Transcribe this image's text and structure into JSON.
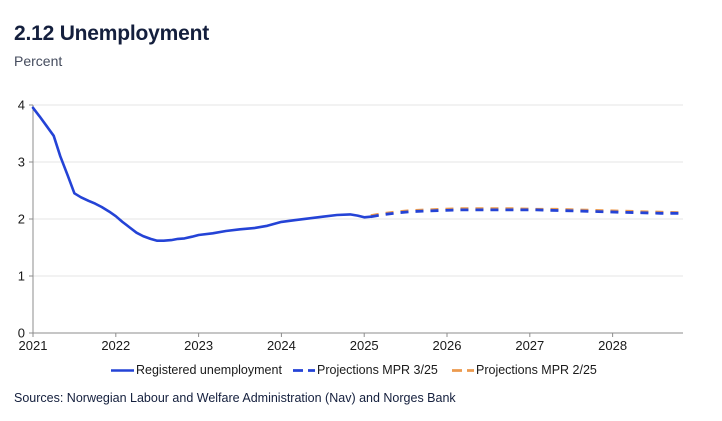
{
  "header": {
    "title": "2.12 Unemployment",
    "subtitle": "Percent"
  },
  "footer": {
    "sources": "Sources: Norwegian Labour and Welfare Administration (Nav) and Norges Bank"
  },
  "colors": {
    "blue": "#2443d6",
    "orange": "#ec9a4e",
    "title_navy": "#141f3d",
    "subtitle_gray": "#454c5e",
    "axis_line": "#8c8c8c",
    "gridline": "#e4e4e4",
    "tick_label": "#1a1a1a"
  },
  "chart_data": {
    "type": "line",
    "title": "2.12 Unemployment",
    "ylabel": "Percent",
    "xlabel": "",
    "xlim": [
      2021,
      2028.85
    ],
    "ylim": [
      0,
      4
    ],
    "x_ticks": [
      2021,
      2022,
      2023,
      2024,
      2025,
      2026,
      2027,
      2028
    ],
    "y_ticks": [
      0,
      1,
      2,
      3,
      4
    ],
    "grid": "horizontal",
    "legend_position": "bottom",
    "series": [
      {
        "name": "Registered unemployment",
        "style": "solid",
        "color_key": "blue",
        "points": [
          [
            2021.0,
            3.95
          ],
          [
            2021.08,
            3.8
          ],
          [
            2021.17,
            3.62
          ],
          [
            2021.25,
            3.46
          ],
          [
            2021.33,
            3.1
          ],
          [
            2021.42,
            2.76
          ],
          [
            2021.5,
            2.45
          ],
          [
            2021.58,
            2.38
          ],
          [
            2021.67,
            2.32
          ],
          [
            2021.75,
            2.27
          ],
          [
            2021.83,
            2.21
          ],
          [
            2021.92,
            2.13
          ],
          [
            2022.0,
            2.05
          ],
          [
            2022.08,
            1.95
          ],
          [
            2022.17,
            1.85
          ],
          [
            2022.25,
            1.76
          ],
          [
            2022.33,
            1.7
          ],
          [
            2022.42,
            1.65
          ],
          [
            2022.5,
            1.62
          ],
          [
            2022.58,
            1.62
          ],
          [
            2022.67,
            1.63
          ],
          [
            2022.75,
            1.65
          ],
          [
            2022.83,
            1.66
          ],
          [
            2022.92,
            1.69
          ],
          [
            2023.0,
            1.72
          ],
          [
            2023.17,
            1.75
          ],
          [
            2023.33,
            1.79
          ],
          [
            2023.5,
            1.82
          ],
          [
            2023.67,
            1.84
          ],
          [
            2023.83,
            1.88
          ],
          [
            2024.0,
            1.95
          ],
          [
            2024.17,
            1.98
          ],
          [
            2024.33,
            2.01
          ],
          [
            2024.5,
            2.04
          ],
          [
            2024.67,
            2.07
          ],
          [
            2024.83,
            2.08
          ],
          [
            2024.92,
            2.06
          ],
          [
            2025.0,
            2.03
          ],
          [
            2025.08,
            2.04
          ]
        ]
      },
      {
        "name": "Projections MPR 3/25",
        "style": "dashed",
        "color_key": "blue",
        "points": [
          [
            2025.08,
            2.04
          ],
          [
            2025.25,
            2.08
          ],
          [
            2025.42,
            2.11
          ],
          [
            2025.58,
            2.13
          ],
          [
            2025.75,
            2.14
          ],
          [
            2025.92,
            2.15
          ],
          [
            2026.17,
            2.16
          ],
          [
            2026.5,
            2.16
          ],
          [
            2026.83,
            2.16
          ],
          [
            2027.08,
            2.16
          ],
          [
            2027.33,
            2.15
          ],
          [
            2027.58,
            2.14
          ],
          [
            2027.83,
            2.13
          ],
          [
            2028.08,
            2.12
          ],
          [
            2028.33,
            2.11
          ],
          [
            2028.58,
            2.1
          ],
          [
            2028.83,
            2.1
          ]
        ]
      },
      {
        "name": "Projections MPR 2/25",
        "style": "dashed",
        "color_key": "orange",
        "points": [
          [
            2025.08,
            2.06
          ],
          [
            2025.25,
            2.1
          ],
          [
            2025.42,
            2.13
          ],
          [
            2025.58,
            2.15
          ],
          [
            2025.75,
            2.16
          ],
          [
            2025.92,
            2.17
          ],
          [
            2026.17,
            2.18
          ],
          [
            2026.5,
            2.18
          ],
          [
            2026.83,
            2.18
          ],
          [
            2027.08,
            2.17
          ],
          [
            2027.33,
            2.17
          ],
          [
            2027.58,
            2.16
          ],
          [
            2027.83,
            2.15
          ],
          [
            2028.08,
            2.14
          ],
          [
            2028.33,
            2.13
          ],
          [
            2028.58,
            2.12
          ],
          [
            2028.83,
            2.11
          ]
        ]
      }
    ]
  }
}
